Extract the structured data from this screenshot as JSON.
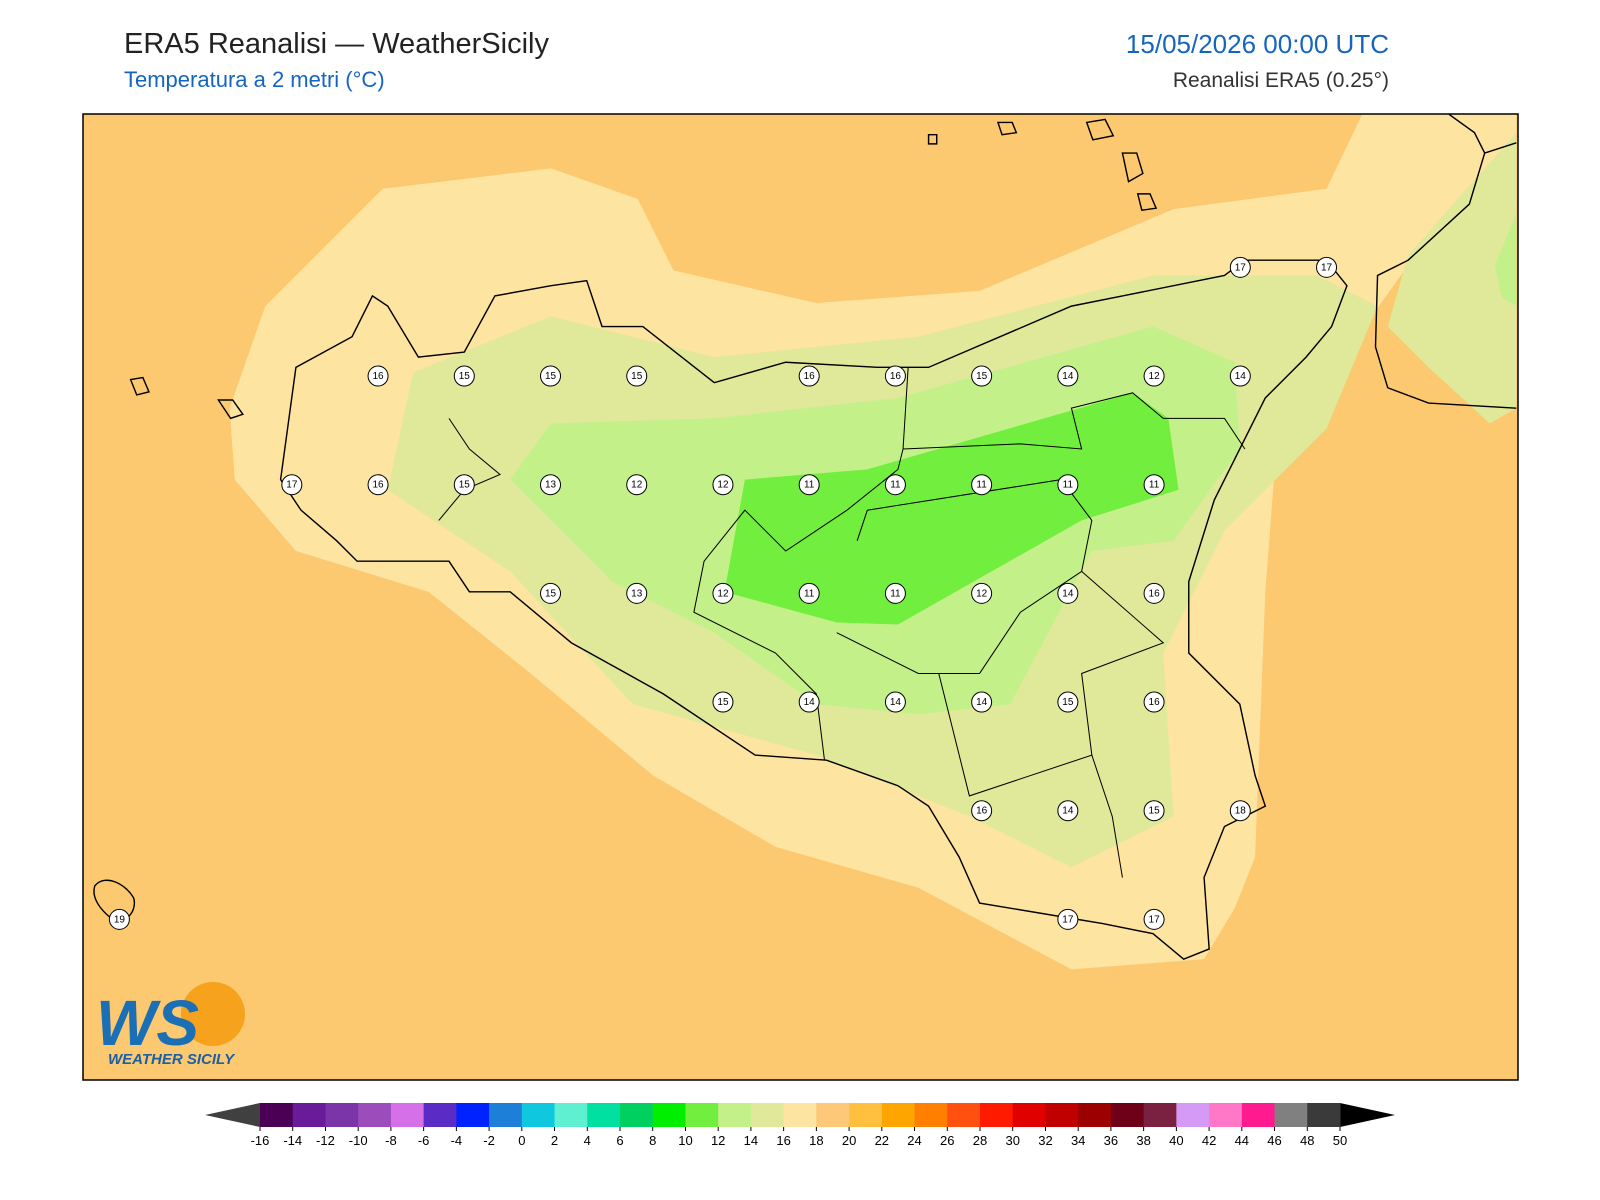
{
  "header": {
    "title": "ERA5 Reanalisi — WeatherSicily",
    "subtitle": "Temperatura a 2 metri (°C)",
    "datetime": "15/05/2026 00:00 UTC",
    "source": "Reanalisi ERA5 (0.25°)"
  },
  "map": {
    "point_values": [
      [
        null,
        null,
        null,
        null,
        null,
        null,
        null,
        null,
        null,
        null,
        null,
        null,
        null,
        17,
        17
      ],
      [
        null,
        null,
        null,
        16,
        15,
        15,
        15,
        null,
        16,
        16,
        15,
        14,
        12,
        14,
        null
      ],
      [
        null,
        null,
        17,
        16,
        15,
        13,
        12,
        12,
        11,
        11,
        11,
        11,
        11,
        null,
        null
      ],
      [
        null,
        null,
        null,
        null,
        null,
        15,
        13,
        12,
        11,
        11,
        12,
        14,
        16,
        null,
        null
      ],
      [
        null,
        null,
        null,
        null,
        null,
        null,
        null,
        15,
        14,
        14,
        14,
        15,
        16,
        null,
        null
      ],
      [
        null,
        null,
        null,
        null,
        null,
        null,
        null,
        null,
        null,
        null,
        16,
        14,
        15,
        18,
        null
      ],
      [
        19,
        null,
        null,
        null,
        null,
        null,
        null,
        null,
        null,
        null,
        null,
        17,
        17,
        null,
        null
      ]
    ]
  },
  "logo": {
    "mark": "WS",
    "text": "WEATHER SICILY"
  },
  "colorbar": {
    "ticks": [
      -16,
      -14,
      -12,
      -10,
      -8,
      -6,
      -4,
      -2,
      0,
      2,
      4,
      6,
      8,
      10,
      12,
      14,
      16,
      18,
      20,
      22,
      24,
      26,
      28,
      30,
      32,
      34,
      36,
      38,
      40,
      42,
      44,
      46,
      48,
      50
    ],
    "colors": [
      "#4b0055",
      "#6a1b9a",
      "#7b35a8",
      "#9c4dbb",
      "#d670e8",
      "#5b2bc6",
      "#0022ff",
      "#1e7fd8",
      "#0fc8e0",
      "#5ef0d0",
      "#00e0a0",
      "#00d060",
      "#00ee00",
      "#72ee3e",
      "#c4f08a",
      "#e0e89a",
      "#fde4a0",
      "#fdc878",
      "#ffc040",
      "#ffa500",
      "#ff8000",
      "#ff5010",
      "#ff1a00",
      "#e00000",
      "#c00000",
      "#9c0000",
      "#6e0018",
      "#7a2040",
      "#d49af5",
      "#ff78c8",
      "#ff1a90",
      "#808080",
      "#3a3a3a"
    ],
    "under_color": "#404040",
    "over_color": "#000000"
  }
}
